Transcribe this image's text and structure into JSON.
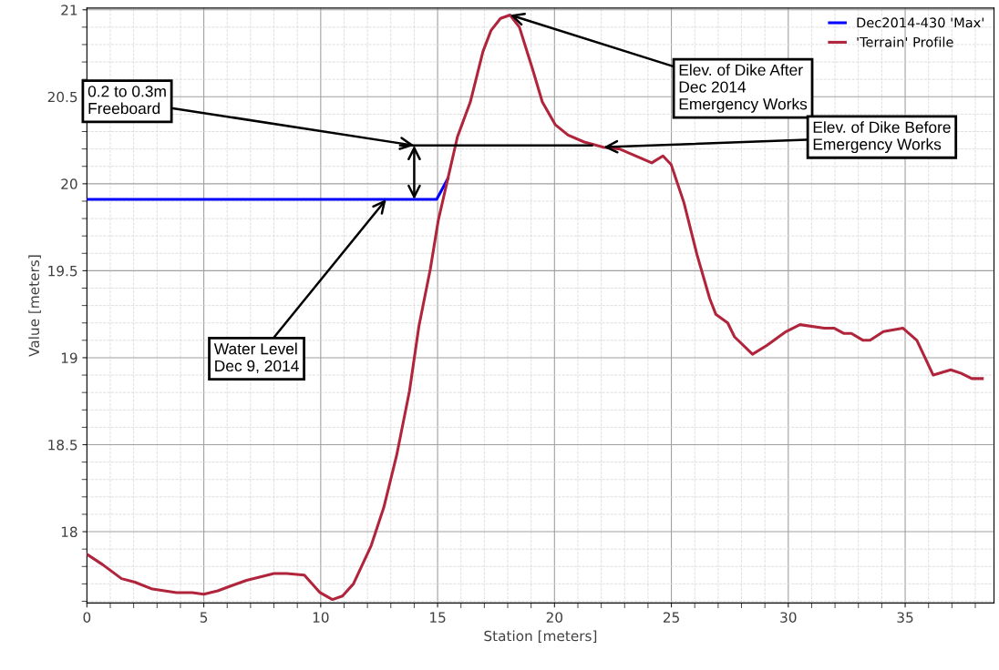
{
  "chart_data": {
    "type": "line",
    "xlabel": "Station [meters]",
    "ylabel": "Value [meters]",
    "xlim": [
      0,
      38.8
    ],
    "ylim": [
      17.59,
      21.01
    ],
    "xticks": [
      0,
      5,
      10,
      15,
      20,
      25,
      30,
      35
    ],
    "yticks": [
      18,
      18.5,
      19,
      19.5,
      20,
      20.5,
      21
    ],
    "grid": true,
    "legend": "top right",
    "marker": "none",
    "line_style": "solid",
    "series": [
      {
        "name": "Dec2014-430 'Max'",
        "color": "#0000ff",
        "x": [
          0,
          14.96,
          15.44
        ],
        "values": [
          19.91,
          19.91,
          20.03
        ]
      },
      {
        "name": "'Terrain' Profile",
        "color": "#b0243c",
        "x": [
          0,
          0.68,
          1.48,
          2.05,
          2.8,
          3.83,
          4.5,
          5,
          5.6,
          6.2,
          6.83,
          8.0,
          8.54,
          9.3,
          9.97,
          10.5,
          10.93,
          11.4,
          12.16,
          12.7,
          13.25,
          13.8,
          14.2,
          14.69,
          15.03,
          15.44,
          15.85,
          16.4,
          16.94,
          17.28,
          17.69,
          18.1,
          18.5,
          19.06,
          19.48,
          20.03,
          20.58,
          21.27,
          22.1,
          22.78,
          24.16,
          24.64,
          24.99,
          25.54,
          26.1,
          26.64,
          26.9,
          27.41,
          27.7,
          28.47,
          29.08,
          29.9,
          30.5,
          31.54,
          31.95,
          32.37,
          32.7,
          33.2,
          33.5,
          34.07,
          34.9,
          35.5,
          36.2,
          36.95,
          37.4,
          37.85,
          38.3
        ],
        "values": [
          17.87,
          17.81,
          17.73,
          17.71,
          17.67,
          17.65,
          17.65,
          17.64,
          17.66,
          17.69,
          17.72,
          17.76,
          17.76,
          17.75,
          17.65,
          17.61,
          17.63,
          17.7,
          17.92,
          18.14,
          18.44,
          18.81,
          19.18,
          19.51,
          19.79,
          20.03,
          20.27,
          20.47,
          20.76,
          20.88,
          20.95,
          20.97,
          20.9,
          20.66,
          20.47,
          20.34,
          20.28,
          20.24,
          20.21,
          20.2,
          20.12,
          20.16,
          20.11,
          19.89,
          19.59,
          19.34,
          19.25,
          19.2,
          19.12,
          19.02,
          19.07,
          19.15,
          19.19,
          19.17,
          19.17,
          19.14,
          19.14,
          19.1,
          19.1,
          19.15,
          19.17,
          19.1,
          18.9,
          18.93,
          18.91,
          18.88,
          18.88
        ]
      },
      {
        "color": "#000000",
        "x": [
          13.4,
          21.6
        ],
        "values": [
          20.22,
          20.22
        ]
      }
    ],
    "annotations": [
      {
        "text": "0.2 to 0.3m\nFreeboard",
        "x": 14.0,
        "y": 20.22
      },
      {
        "text": "Water Level\nDec 9, 2014",
        "x": 12.8,
        "y": 19.91
      },
      {
        "text": "Elev. of Dike After\nDec 2014\nEmergency Works",
        "x": 18.1,
        "y": 20.97
      },
      {
        "text": "Elev. of Dike Before\nEmergency Works",
        "x": 22.1,
        "y": 20.21
      }
    ]
  }
}
